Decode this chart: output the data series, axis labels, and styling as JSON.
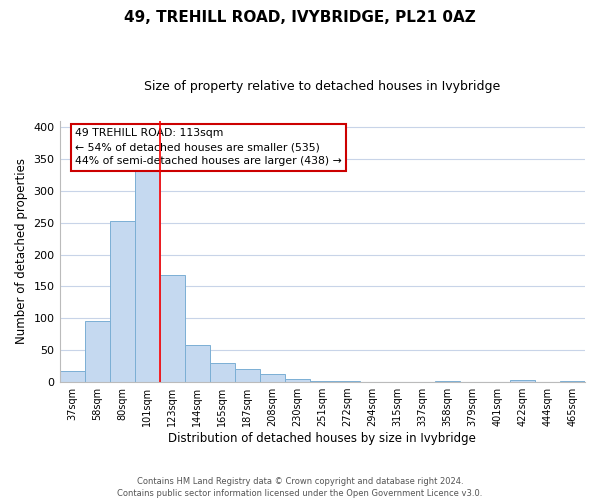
{
  "title": "49, TREHILL ROAD, IVYBRIDGE, PL21 0AZ",
  "subtitle": "Size of property relative to detached houses in Ivybridge",
  "xlabel": "Distribution of detached houses by size in Ivybridge",
  "ylabel": "Number of detached properties",
  "categories": [
    "37sqm",
    "58sqm",
    "80sqm",
    "101sqm",
    "123sqm",
    "144sqm",
    "165sqm",
    "187sqm",
    "208sqm",
    "230sqm",
    "251sqm",
    "272sqm",
    "294sqm",
    "315sqm",
    "337sqm",
    "358sqm",
    "379sqm",
    "401sqm",
    "422sqm",
    "444sqm",
    "465sqm"
  ],
  "values": [
    17,
    95,
    253,
    333,
    168,
    58,
    30,
    20,
    12,
    5,
    1,
    1,
    0,
    0,
    0,
    1,
    0,
    0,
    4,
    0,
    1
  ],
  "bar_color": "#c5d9f0",
  "bar_edge_color": "#7bafd4",
  "red_line_x": 3.5,
  "annotation_line1": "49 TREHILL ROAD: 113sqm",
  "annotation_line2": "← 54% of detached houses are smaller (535)",
  "annotation_line3": "44% of semi-detached houses are larger (438) →",
  "ylim": [
    0,
    410
  ],
  "yticks": [
    0,
    50,
    100,
    150,
    200,
    250,
    300,
    350,
    400
  ],
  "footer_line1": "Contains HM Land Registry data © Crown copyright and database right 2024.",
  "footer_line2": "Contains public sector information licensed under the Open Government Licence v3.0.",
  "title_fontsize": 11,
  "subtitle_fontsize": 9,
  "bg_color": "#ffffff",
  "grid_color": "#c8d4e8"
}
